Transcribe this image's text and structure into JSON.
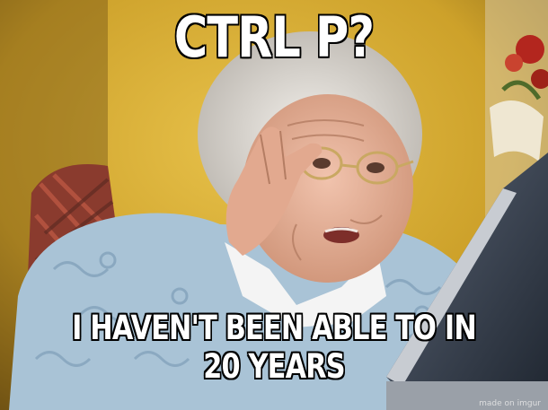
{
  "meme": {
    "top_text": "CTRL P?",
    "bottom_text": "I HAVEN'T BEEN ABLE TO IN 20 YEARS",
    "watermark": "made on imgur"
  },
  "colors": {
    "wall": "#cfa52a",
    "sweater": "#a9c3d6",
    "hair": "#e6e2dc",
    "skin": "#e8b39b",
    "monitor": "#3c4654"
  }
}
